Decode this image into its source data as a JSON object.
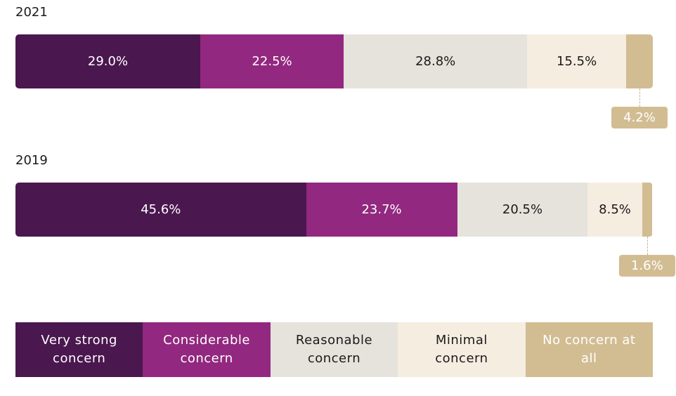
{
  "chart_data": {
    "type": "stacked-bar",
    "categories": [
      "2021",
      "2019"
    ],
    "xlim": [
      0,
      100
    ],
    "series": [
      {
        "name": "Very strong concern",
        "color": "#4a174f",
        "text_color": "#ffffff",
        "values": [
          29.0,
          45.6
        ],
        "value_labels": [
          "29.0%",
          "45.6%"
        ]
      },
      {
        "name": "Considerable concern",
        "color": "#92287f",
        "text_color": "#ffffff",
        "values": [
          22.5,
          23.7
        ],
        "value_labels": [
          "22.5%",
          "23.7%"
        ]
      },
      {
        "name": "Reasonable concern",
        "color": "#e5e3dc",
        "text_color": "#1a1a1a",
        "values": [
          28.8,
          20.5
        ],
        "value_labels": [
          "28.8%",
          "20.5%"
        ]
      },
      {
        "name": "Minimal concern",
        "color": "#f6ede1",
        "text_color": "#1a1a1a",
        "values": [
          15.5,
          8.5
        ],
        "value_labels": [
          "15.5%",
          "8.5%"
        ]
      },
      {
        "name": "No concern at all",
        "color": "#d2bd93",
        "text_color": "#ffffff",
        "values": [
          4.2,
          1.6
        ],
        "value_labels": [
          "4.2%",
          "1.6%"
        ]
      }
    ]
  }
}
